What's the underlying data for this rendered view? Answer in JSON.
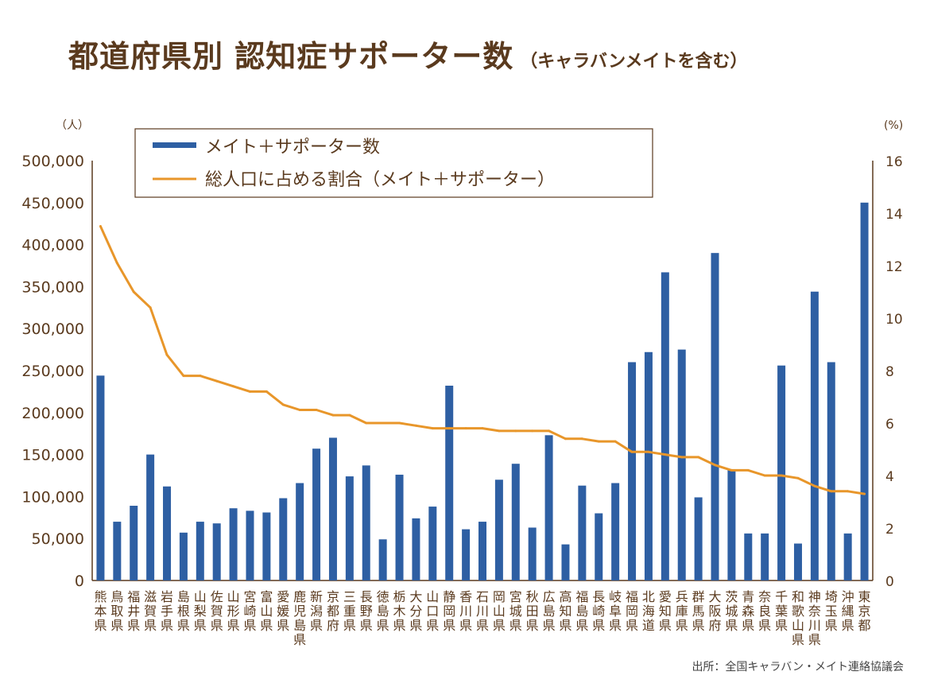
{
  "title": "都道府県別 認知症サポーター数",
  "subtitle": "（キャラバンメイトを含む）",
  "source": "出所：全国キャラバン・メイト連絡協議会",
  "colors": {
    "bar": "#2e5fa3",
    "line": "#e8962a",
    "text": "#5a3a1e"
  },
  "chart_data": {
    "type": "bar",
    "y_unit_left": "（人）",
    "y_unit_right": "(%)",
    "ylim": [
      0,
      500000
    ],
    "y2lim": [
      0,
      16
    ],
    "yticks": [
      "0",
      "50,000",
      "100,000",
      "150,000",
      "200,000",
      "250,000",
      "300,000",
      "350,000",
      "400,000",
      "450,000",
      "500,000"
    ],
    "y2ticks": [
      "0",
      "2",
      "4",
      "6",
      "8",
      "10",
      "12",
      "14",
      "16"
    ],
    "legend": [
      "メイト＋サポーター数",
      "総人口に占める割合（メイト＋サポーター）"
    ],
    "categories": [
      "熊本県",
      "鳥取県",
      "福井県",
      "滋賀県",
      "岩手県",
      "島根県",
      "山梨県",
      "佐賀県",
      "山形県",
      "宮崎県",
      "富山県",
      "愛媛県",
      "鹿児島県",
      "新潟県",
      "京都府",
      "三重県",
      "長野県",
      "徳島県",
      "栃木県",
      "大分県",
      "山口県",
      "静岡県",
      "香川県",
      "石川県",
      "岡山県",
      "宮城県",
      "秋田県",
      "広島県",
      "高知県",
      "福島県",
      "長崎県",
      "岐阜県",
      "福岡県",
      "北海道",
      "愛知県",
      "兵庫県",
      "群馬県",
      "大阪府",
      "茨城県",
      "青森県",
      "奈良県",
      "千葉県",
      "和歌山県",
      "神奈川県",
      "埼玉県",
      "沖縄県",
      "東京都"
    ],
    "series": [
      {
        "name": "メイト＋サポーター数",
        "type": "bar",
        "values": [
          244000,
          70000,
          89000,
          150000,
          112000,
          57000,
          70000,
          68000,
          86000,
          83000,
          81000,
          98000,
          116000,
          157000,
          170000,
          124000,
          137000,
          49000,
          126000,
          74000,
          88000,
          232000,
          61000,
          70000,
          120000,
          139000,
          63000,
          173000,
          43000,
          113000,
          80000,
          116000,
          260000,
          272000,
          367000,
          275000,
          99000,
          390000,
          132000,
          56000,
          56000,
          256000,
          44000,
          344000,
          260000,
          56000,
          450000
        ]
      },
      {
        "name": "総人口に占める割合（メイト＋サポーター）",
        "type": "line",
        "values": [
          13.5,
          12.1,
          11.0,
          10.4,
          8.6,
          7.8,
          7.8,
          7.6,
          7.4,
          7.2,
          7.2,
          6.7,
          6.5,
          6.5,
          6.3,
          6.3,
          6.0,
          6.0,
          6.0,
          5.9,
          5.8,
          5.8,
          5.8,
          5.8,
          5.7,
          5.7,
          5.7,
          5.7,
          5.4,
          5.4,
          5.3,
          5.3,
          4.9,
          4.9,
          4.8,
          4.7,
          4.7,
          4.4,
          4.2,
          4.2,
          4.0,
          4.0,
          3.9,
          3.6,
          3.4,
          3.4,
          3.3
        ]
      }
    ]
  }
}
